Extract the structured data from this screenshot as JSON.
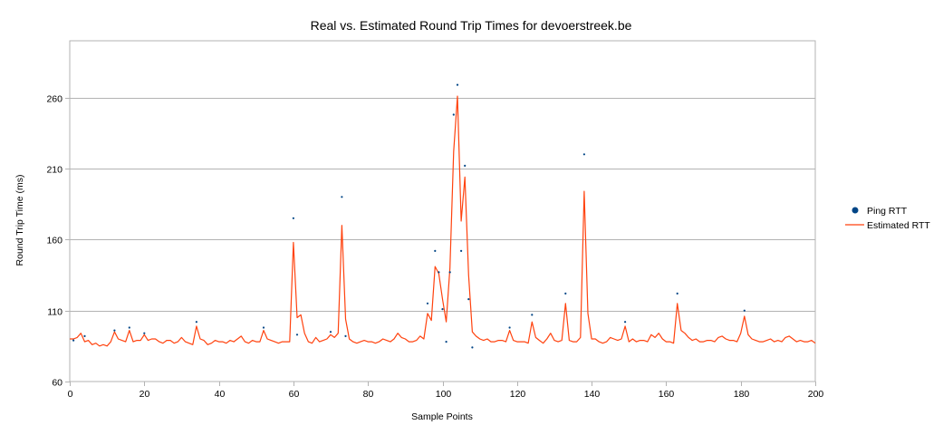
{
  "chart_data": {
    "type": "line",
    "title": "Real vs. Estimated Round Trip Times for devoerstreek.be",
    "xlabel": "Sample Points",
    "ylabel": "Round Trip Time (ms)",
    "xlim": [
      0,
      200
    ],
    "ylim": [
      60,
      300
    ],
    "xticks": [
      0,
      20,
      40,
      60,
      80,
      100,
      120,
      140,
      160,
      180,
      200
    ],
    "yticks": [
      60,
      110,
      160,
      210,
      260
    ],
    "grid": "horizontal",
    "legend_position": "right",
    "series": [
      {
        "name": "Ping RTT",
        "kind": "scatter",
        "color": "#004586",
        "x": [
          1,
          4,
          12,
          16,
          20,
          34,
          52,
          60,
          61,
          70,
          73,
          74,
          96,
          98,
          99,
          100,
          101,
          102,
          103,
          104,
          105,
          106,
          107,
          108,
          118,
          124,
          133,
          138,
          149,
          163,
          181
        ],
        "y": [
          89,
          92,
          96,
          98,
          94,
          102,
          98,
          175,
          93,
          95,
          190,
          92,
          115,
          152,
          137,
          111,
          88,
          137,
          248,
          269,
          152,
          212,
          118,
          84,
          98,
          107,
          122,
          220,
          102,
          122,
          110
        ]
      },
      {
        "name": "Estimated RTT",
        "kind": "line",
        "color": "#ff420e",
        "x": [
          0,
          1,
          2,
          3,
          4,
          5,
          6,
          7,
          8,
          9,
          10,
          11,
          12,
          13,
          14,
          15,
          16,
          17,
          18,
          19,
          20,
          21,
          22,
          23,
          24,
          25,
          26,
          27,
          28,
          29,
          30,
          31,
          32,
          33,
          34,
          35,
          36,
          37,
          38,
          39,
          40,
          41,
          42,
          43,
          44,
          45,
          46,
          47,
          48,
          49,
          50,
          51,
          52,
          53,
          54,
          55,
          56,
          57,
          58,
          59,
          60,
          61,
          62,
          63,
          64,
          65,
          66,
          67,
          68,
          69,
          70,
          71,
          72,
          73,
          74,
          75,
          76,
          77,
          78,
          79,
          80,
          81,
          82,
          83,
          84,
          85,
          86,
          87,
          88,
          89,
          90,
          91,
          92,
          93,
          94,
          95,
          96,
          97,
          98,
          99,
          100,
          101,
          102,
          103,
          104,
          105,
          106,
          107,
          108,
          109,
          110,
          111,
          112,
          113,
          114,
          115,
          116,
          117,
          118,
          119,
          120,
          121,
          122,
          123,
          124,
          125,
          126,
          127,
          128,
          129,
          130,
          131,
          132,
          133,
          134,
          135,
          136,
          137,
          138,
          139,
          140,
          141,
          142,
          143,
          144,
          145,
          146,
          147,
          148,
          149,
          150,
          151,
          152,
          153,
          154,
          155,
          156,
          157,
          158,
          159,
          160,
          161,
          162,
          163,
          164,
          165,
          166,
          167,
          168,
          169,
          170,
          171,
          172,
          173,
          174,
          175,
          176,
          177,
          178,
          179,
          180,
          181,
          182,
          183,
          184,
          185,
          186,
          187,
          188,
          189,
          190,
          191,
          192,
          193,
          194,
          195,
          196,
          197,
          198,
          199,
          200
        ],
        "y": [
          90,
          90,
          91,
          94,
          88,
          89,
          86,
          87,
          85,
          86,
          85,
          88,
          95,
          90,
          89,
          88,
          96,
          88,
          89,
          89,
          93,
          89,
          90,
          90,
          88,
          87,
          89,
          89,
          87,
          88,
          91,
          88,
          87,
          86,
          99,
          90,
          89,
          86,
          87,
          89,
          88,
          88,
          87,
          89,
          88,
          90,
          92,
          88,
          87,
          89,
          88,
          88,
          96,
          90,
          89,
          88,
          87,
          88,
          88,
          88,
          158,
          105,
          107,
          94,
          88,
          87,
          91,
          88,
          89,
          90,
          93,
          91,
          94,
          170,
          104,
          90,
          88,
          87,
          88,
          89,
          88,
          88,
          87,
          88,
          90,
          89,
          88,
          90,
          94,
          91,
          90,
          88,
          88,
          89,
          92,
          90,
          108,
          103,
          141,
          136,
          118,
          102,
          140,
          222,
          261,
          173,
          204,
          135,
          95,
          92,
          90,
          89,
          90,
          88,
          88,
          89,
          89,
          88,
          96,
          89,
          88,
          88,
          88,
          87,
          102,
          91,
          89,
          87,
          90,
          94,
          89,
          88,
          89,
          115,
          89,
          88,
          88,
          91,
          194,
          108,
          90,
          90,
          88,
          87,
          88,
          91,
          90,
          89,
          90,
          99,
          88,
          90,
          88,
          89,
          89,
          88,
          93,
          91,
          94,
          90,
          88,
          88,
          87,
          115,
          96,
          94,
          91,
          89,
          90,
          88,
          88,
          89,
          89,
          88,
          91,
          92,
          90,
          89,
          89,
          88,
          94,
          106,
          93,
          90,
          89,
          88,
          88,
          89,
          90,
          88,
          89,
          88,
          91,
          92,
          90,
          88,
          89,
          88,
          88,
          89,
          87
        ]
      }
    ]
  }
}
